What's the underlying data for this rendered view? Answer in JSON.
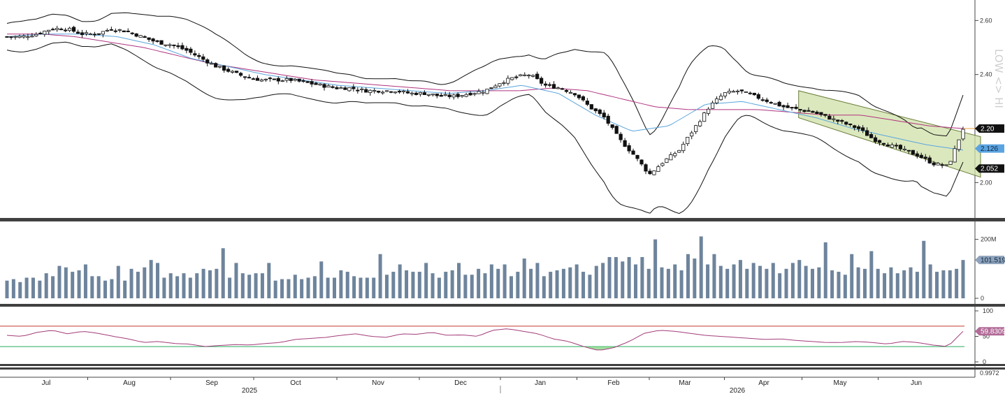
{
  "chart_data": {
    "type": "candlestick",
    "side_label": "LOW <> HI",
    "months": [
      "Jul",
      "Aug",
      "Sep",
      "Oct",
      "Nov",
      "Dec",
      "Jan",
      "Feb",
      "Mar",
      "Apr",
      "May",
      "Jun"
    ],
    "years": [
      {
        "label": "2025"
      },
      {
        "label": "2026"
      }
    ],
    "price_panel": {
      "ylim": [
        1.9,
        2.65
      ],
      "ticks": [
        "2.60",
        "2.40",
        "2.00"
      ],
      "tags": [
        {
          "label": "2.20",
          "value": 2.2,
          "color": "#111111",
          "text": "#ffffff"
        },
        {
          "label": "2.126",
          "value": 2.126,
          "color": "#5ba3e0",
          "text": "#0b2540"
        },
        {
          "label": "2.052",
          "value": 2.052,
          "color": "#111111",
          "text": "#ffffff"
        }
      ],
      "close_keypoints": [
        2.54,
        2.54,
        2.55,
        2.57,
        2.57,
        2.55,
        2.55,
        2.57,
        2.56,
        2.54,
        2.52,
        2.51,
        2.49,
        2.46,
        2.43,
        2.41,
        2.39,
        2.38,
        2.38,
        2.38,
        2.37,
        2.36,
        2.35,
        2.35,
        2.34,
        2.34,
        2.34,
        2.33,
        2.33,
        2.32,
        2.32,
        2.33,
        2.34,
        2.37,
        2.39,
        2.4,
        2.36,
        2.35,
        2.33,
        2.28,
        2.24,
        2.16,
        2.1,
        2.03,
        2.08,
        2.12,
        2.2,
        2.28,
        2.33,
        2.34,
        2.32,
        2.3,
        2.28,
        2.27,
        2.26,
        2.24,
        2.22,
        2.2,
        2.16,
        2.14,
        2.12,
        2.1,
        2.07,
        2.06,
        2.2
      ],
      "ma50_keypoints": [
        2.55,
        2.55,
        2.54,
        2.52,
        2.5,
        2.47,
        2.44,
        2.42,
        2.4,
        2.38,
        2.37,
        2.36,
        2.35,
        2.34,
        2.34,
        2.34,
        2.35,
        2.34,
        2.31,
        2.28,
        2.27,
        2.27,
        2.27,
        2.26,
        2.25,
        2.25,
        2.23,
        2.21,
        2.2
      ],
      "ma20_keypoints": [
        2.54,
        2.55,
        2.55,
        2.54,
        2.51,
        2.46,
        2.43,
        2.4,
        2.38,
        2.36,
        2.35,
        2.34,
        2.33,
        2.34,
        2.36,
        2.33,
        2.25,
        2.19,
        2.21,
        2.29,
        2.3,
        2.27,
        2.24,
        2.2,
        2.17,
        2.14,
        2.12
      ],
      "channel": {
        "start_label": "Apr",
        "upper_start": 2.34,
        "lower_start": 2.24,
        "upper_end": 2.17,
        "lower_end": 2.02
      },
      "channel_color": "#cfe0a8"
    },
    "volume_panel": {
      "ticks": [
        "200M",
        "0"
      ],
      "tag": {
        "label": "101.519",
        "color": "#8ea3bb"
      },
      "bar_color": "#6e849c",
      "scale_max_millions": 230,
      "values_millions": [
        60,
        65,
        55,
        70,
        70,
        60,
        85,
        75,
        110,
        105,
        90,
        95,
        115,
        75,
        75,
        60,
        65,
        110,
        60,
        100,
        90,
        105,
        130,
        120,
        70,
        85,
        75,
        85,
        70,
        85,
        100,
        95,
        100,
        170,
        70,
        120,
        85,
        80,
        85,
        85,
        120,
        60,
        65,
        65,
        80,
        65,
        70,
        75,
        125,
        70,
        70,
        95,
        90,
        75,
        70,
        70,
        70,
        150,
        80,
        90,
        115,
        95,
        90,
        90,
        120,
        85,
        70,
        90,
        95,
        120,
        80,
        80,
        100,
        85,
        115,
        100,
        115,
        75,
        90,
        135,
        100,
        120,
        75,
        90,
        95,
        100,
        105,
        115,
        90,
        80,
        110,
        120,
        140,
        140,
        125,
        140,
        115,
        140,
        100,
        200,
        105,
        100,
        115,
        95,
        150,
        135,
        210,
        115,
        150,
        110,
        100,
        115,
        130,
        100,
        120,
        110,
        100,
        120,
        85,
        100,
        120,
        130,
        110,
        100,
        105,
        190,
        95,
        90,
        80,
        150,
        105,
        100,
        160,
        100,
        85,
        105,
        85,
        95,
        105,
        90,
        195,
        115,
        90,
        95,
        95,
        100,
        130
      ]
    },
    "rsi_panel": {
      "ticks": [
        "100",
        "50",
        "0"
      ],
      "tag": {
        "label": "59.8309",
        "color": "#b26b98"
      },
      "overbought": 70,
      "oversold": 30,
      "line_color": "#a33c7a",
      "keypoints": [
        52,
        50,
        58,
        62,
        55,
        60,
        56,
        50,
        45,
        38,
        40,
        36,
        35,
        30,
        32,
        34,
        33,
        36,
        38,
        44,
        46,
        48,
        52,
        55,
        50,
        48,
        55,
        54,
        58,
        52,
        53,
        50,
        62,
        65,
        60,
        55,
        45,
        40,
        30,
        22,
        28,
        40,
        56,
        62,
        60,
        56,
        52,
        50,
        48,
        46,
        44,
        45,
        42,
        40,
        38,
        38,
        40,
        38,
        35,
        40,
        38,
        33,
        30,
        60
      ]
    },
    "bottom_tag": "0.9972"
  }
}
